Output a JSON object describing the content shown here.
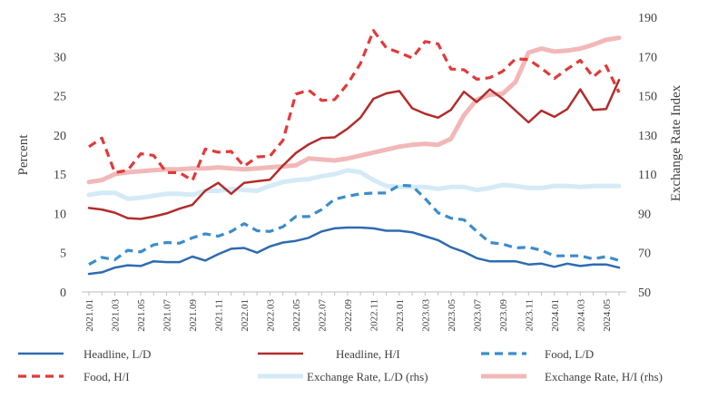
{
  "chart_data": {
    "type": "line",
    "y_left": {
      "label": "Percent",
      "min": 0,
      "max": 35,
      "ticks": [
        0,
        5,
        10,
        15,
        20,
        25,
        30,
        35
      ]
    },
    "y_right": {
      "label": "Exchange Rate Index",
      "min": 50,
      "max": 190,
      "ticks": [
        50,
        70,
        90,
        110,
        130,
        150,
        170,
        190
      ]
    },
    "x": [
      "2021.01",
      "2021.02",
      "2021.03",
      "2021.04",
      "2021.05",
      "2021.06",
      "2021.07",
      "2021.08",
      "2021.09",
      "2021.10",
      "2021.11",
      "2021.12",
      "2022.01",
      "2022.02",
      "2022.03",
      "2022.04",
      "2022.05",
      "2022.06",
      "2022.07",
      "2022.08",
      "2022.09",
      "2022.10",
      "2022.11",
      "2022.12",
      "2023.01",
      "2023.02",
      "2023.03",
      "2023.04",
      "2023.05",
      "2023.06",
      "2023.07",
      "2023.08",
      "2023.09",
      "2023.10",
      "2023.11",
      "2023.12",
      "2024.01",
      "2024.02",
      "2024.03",
      "2024.04",
      "2024.05",
      "2024.06"
    ],
    "x_tick_labels": [
      "2021.01",
      "2021.03",
      "2021.05",
      "2021.07",
      "2021.09",
      "2021.11",
      "2022.01",
      "2022.03",
      "2022.05",
      "2022.07",
      "2022.09",
      "2022.11",
      "2023.01",
      "2023.03",
      "2023.05",
      "2023.07",
      "2023.09",
      "2023.11",
      "2024.01",
      "2024.03",
      "2024.05"
    ],
    "grid": false,
    "legend_position": "bottom",
    "series": [
      {
        "name": "Headline, L/D",
        "axis": "left",
        "color": "#2e6bb0",
        "dash": "solid",
        "values": [
          2.3,
          2.5,
          3.1,
          3.4,
          3.3,
          3.9,
          3.8,
          3.8,
          4.5,
          4.0,
          4.8,
          5.5,
          5.6,
          5.0,
          5.8,
          6.3,
          6.5,
          6.9,
          7.7,
          8.1,
          8.2,
          8.2,
          8.1,
          7.8,
          7.8,
          7.6,
          7.1,
          6.6,
          5.7,
          5.1,
          4.3,
          3.9,
          3.9,
          3.9,
          3.5,
          3.6,
          3.2,
          3.6,
          3.3,
          3.5,
          3.5,
          3.1
        ]
      },
      {
        "name": "Headline, H/I",
        "axis": "left",
        "color": "#b22c2c",
        "dash": "solid",
        "values": [
          10.7,
          10.5,
          10.1,
          9.4,
          9.3,
          9.6,
          10.0,
          10.6,
          11.1,
          12.9,
          13.9,
          12.5,
          13.9,
          14.1,
          14.3,
          16.1,
          17.7,
          18.8,
          19.6,
          19.7,
          20.8,
          22.2,
          24.6,
          25.3,
          25.6,
          23.4,
          22.7,
          22.2,
          23.2,
          25.5,
          24.2,
          25.8,
          24.6,
          23.1,
          21.6,
          23.1,
          22.3,
          23.3,
          25.8,
          23.2,
          23.3,
          27.0
        ]
      },
      {
        "name": "Food,  L/D",
        "axis": "left",
        "color": "#3b8dcc",
        "dash": "dashed",
        "values": [
          3.5,
          4.4,
          4.1,
          5.3,
          5.1,
          6.0,
          6.3,
          6.2,
          6.9,
          7.4,
          7.1,
          7.7,
          8.7,
          7.8,
          7.7,
          8.3,
          9.6,
          9.6,
          10.5,
          11.8,
          12.2,
          12.5,
          12.6,
          12.6,
          13.6,
          13.5,
          11.9,
          10.1,
          9.4,
          9.2,
          7.7,
          6.3,
          6.1,
          5.6,
          5.7,
          5.3,
          4.6,
          4.6,
          4.6,
          4.2,
          4.5,
          4.0
        ]
      },
      {
        "name": "Food, H/I",
        "axis": "left",
        "color": "#e03a3a",
        "dash": "dashed",
        "values": [
          18.5,
          19.6,
          15.2,
          15.5,
          17.6,
          17.4,
          15.2,
          15.2,
          14.2,
          18.2,
          17.8,
          17.9,
          16.0,
          17.2,
          17.3,
          19.3,
          25.2,
          25.7,
          24.4,
          24.5,
          26.5,
          29.1,
          33.3,
          31.1,
          30.5,
          29.8,
          31.9,
          31.6,
          28.4,
          28.3,
          27.1,
          27.3,
          28.1,
          29.7,
          29.6,
          28.5,
          27.2,
          28.4,
          29.5,
          27.4,
          28.8,
          25.4
        ]
      },
      {
        "name": "Exchange Rate, L/D (rhs)",
        "axis": "right",
        "color": "#d4eaf7",
        "dash": "solid",
        "values": [
          99.5,
          100.5,
          100.5,
          97.5,
          98,
          99,
          100,
          100,
          99.5,
          101.5,
          101.5,
          102.5,
          102,
          101.5,
          104,
          106,
          107,
          107.5,
          109,
          110,
          112,
          111,
          107,
          104,
          103.5,
          103.5,
          103.5,
          102.5,
          103.5,
          103.5,
          102,
          103,
          104.5,
          104,
          103,
          103,
          104,
          104,
          103.5,
          104,
          104,
          104
        ]
      },
      {
        "name": "Exchange Rate, H/I (rhs)",
        "axis": "right",
        "color": "#f2b8b8",
        "dash": "solid",
        "values": [
          106,
          107,
          110,
          111,
          111.5,
          112,
          112.5,
          112.5,
          113,
          113,
          113.5,
          113,
          112.5,
          113,
          113.5,
          114,
          114.5,
          118,
          117.5,
          117,
          118,
          119.5,
          121,
          122.5,
          124,
          125,
          125.5,
          125,
          128,
          140,
          148,
          150.5,
          151,
          157,
          172,
          174,
          172.5,
          173,
          174,
          176,
          178.5,
          179.5
        ]
      }
    ]
  }
}
